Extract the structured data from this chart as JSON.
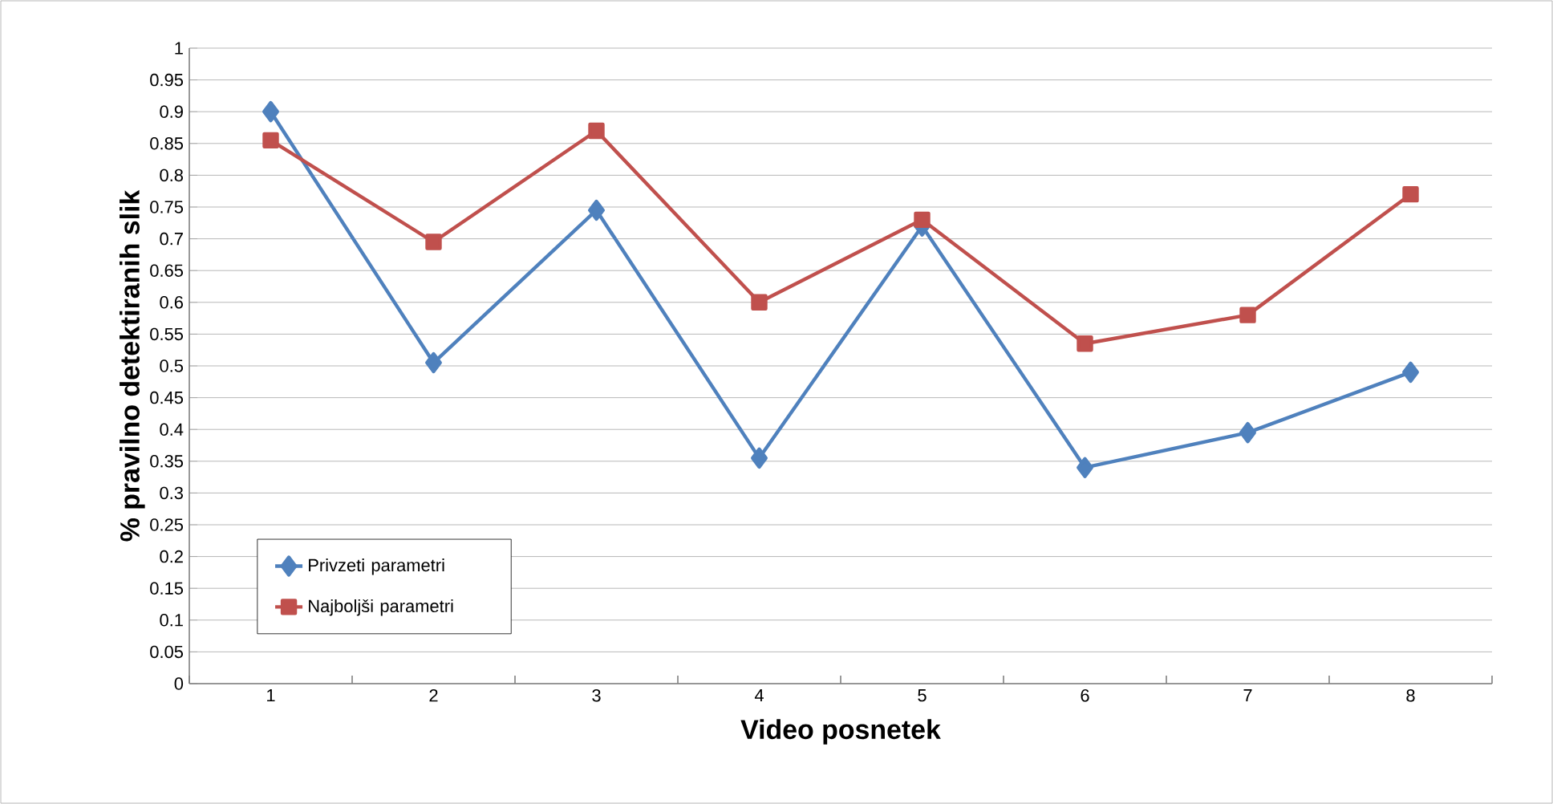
{
  "chart_data": {
    "type": "line",
    "xlabel": "Video posnetek",
    "ylabel": "% pravilno detektiranih slik",
    "categories": [
      "1",
      "2",
      "3",
      "4",
      "5",
      "6",
      "7",
      "8"
    ],
    "series": [
      {
        "name": "Privzeti parametri",
        "color": "#4f81bd",
        "marker": "diamond",
        "values": [
          0.9,
          0.505,
          0.745,
          0.355,
          0.72,
          0.34,
          0.395,
          0.49
        ]
      },
      {
        "name": "Najboljši parametri",
        "color": "#c0504d",
        "marker": "square",
        "values": [
          0.855,
          0.695,
          0.87,
          0.6,
          0.73,
          0.535,
          0.58,
          0.77
        ]
      }
    ],
    "ylim": [
      0,
      1
    ],
    "yticks": [
      0,
      0.05,
      0.1,
      0.15,
      0.2,
      0.25,
      0.3,
      0.35,
      0.4,
      0.45,
      0.5,
      0.55,
      0.6,
      0.65,
      0.7,
      0.75,
      0.8,
      0.85,
      0.9,
      0.95,
      1
    ],
    "grid": "y",
    "legend": "bottom left"
  }
}
